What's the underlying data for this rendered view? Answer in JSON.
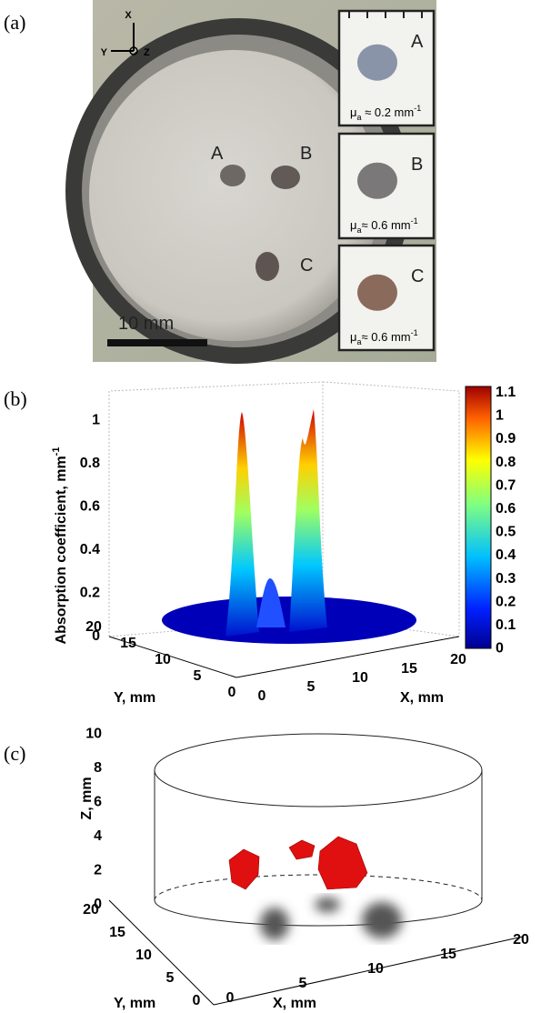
{
  "panel_a": {
    "label": "(a)",
    "axes": [
      "X",
      "Y",
      "Z"
    ],
    "spots": [
      "A",
      "B",
      "C"
    ],
    "scale_bar": "10 mm",
    "insets": [
      {
        "letter": "A",
        "symbol": "μ",
        "sub": "a",
        "text": " ≈ 0.2 mm",
        "sup": "-1"
      },
      {
        "letter": "B",
        "symbol": "μ",
        "sub": "a",
        "text": "≈ 0.6 mm",
        "sup": "-1"
      },
      {
        "letter": "C",
        "symbol": "μ",
        "sub": "a",
        "text": "≈ 0.6 mm",
        "sup": "-1"
      }
    ]
  },
  "panel_b": {
    "label": "(b)",
    "z_label": "Absorption coefficient,  mm",
    "z_label_sup": "-1",
    "z_ticks": [
      0,
      0.2,
      0.4,
      0.6,
      0.8,
      1
    ],
    "y_label": "Y, mm",
    "y_ticks": [
      20,
      15,
      10,
      5,
      0
    ],
    "x_label": "X, mm",
    "x_ticks": [
      0,
      5,
      10,
      15,
      20
    ],
    "colorbar_ticks": [
      1.1,
      1,
      0.9,
      0.8,
      0.7,
      0.6,
      0.5,
      0.4,
      0.3,
      0.2,
      0.1,
      0
    ]
  },
  "panel_c": {
    "label": "(c)",
    "z_label": "Z, mm",
    "z_ticks": [
      0,
      2,
      4,
      6,
      8,
      10
    ],
    "y_label": "Y, mm",
    "y_ticks": [
      20,
      15,
      10,
      5,
      0
    ],
    "x_label": "X, mm",
    "x_ticks": [
      0,
      5,
      10,
      15,
      20
    ]
  }
}
